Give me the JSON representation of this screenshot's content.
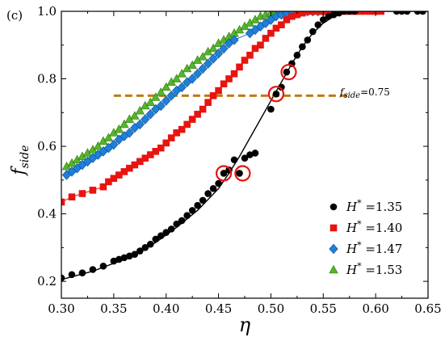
{
  "chart_data": {
    "type": "scatter",
    "panel_label": "(c)",
    "xlabel": "η",
    "ylabel": "f_side",
    "xlim": [
      0.3,
      0.65
    ],
    "ylim": [
      0.15,
      1.0
    ],
    "x_ticks": [
      "0.30",
      "0.35",
      "0.40",
      "0.45",
      "0.50",
      "0.55",
      "0.60",
      "0.65"
    ],
    "x_tick_values": [
      0.3,
      0.35,
      0.4,
      0.45,
      0.5,
      0.55,
      0.6,
      0.65
    ],
    "y_ticks": [
      "0.2",
      "0.4",
      "0.6",
      "0.8",
      "1.0"
    ],
    "y_tick_values": [
      0.2,
      0.4,
      0.6,
      0.8,
      1.0
    ],
    "grid": false,
    "legend_position": "bottom-right",
    "series": [
      {
        "name": "H* =1.35",
        "marker": "circle",
        "color": "#000000",
        "points": [
          [
            0.3,
            0.21
          ],
          [
            0.31,
            0.22
          ],
          [
            0.32,
            0.225
          ],
          [
            0.33,
            0.235
          ],
          [
            0.34,
            0.245
          ],
          [
            0.35,
            0.26
          ],
          [
            0.355,
            0.265
          ],
          [
            0.36,
            0.27
          ],
          [
            0.365,
            0.275
          ],
          [
            0.37,
            0.28
          ],
          [
            0.375,
            0.29
          ],
          [
            0.38,
            0.3
          ],
          [
            0.385,
            0.31
          ],
          [
            0.39,
            0.325
          ],
          [
            0.395,
            0.335
          ],
          [
            0.4,
            0.345
          ],
          [
            0.405,
            0.355
          ],
          [
            0.41,
            0.37
          ],
          [
            0.415,
            0.38
          ],
          [
            0.42,
            0.395
          ],
          [
            0.425,
            0.41
          ],
          [
            0.43,
            0.425
          ],
          [
            0.435,
            0.44
          ],
          [
            0.44,
            0.46
          ],
          [
            0.445,
            0.475
          ],
          [
            0.45,
            0.49
          ],
          [
            0.455,
            0.52
          ],
          [
            0.46,
            0.53
          ],
          [
            0.465,
            0.56
          ],
          [
            0.47,
            0.52
          ],
          [
            0.475,
            0.565
          ],
          [
            0.48,
            0.575
          ],
          [
            0.485,
            0.58
          ],
          [
            0.5,
            0.71
          ],
          [
            0.505,
            0.755
          ],
          [
            0.51,
            0.775
          ],
          [
            0.515,
            0.82
          ],
          [
            0.52,
            0.845
          ],
          [
            0.525,
            0.87
          ],
          [
            0.53,
            0.895
          ],
          [
            0.535,
            0.915
          ],
          [
            0.54,
            0.94
          ],
          [
            0.545,
            0.96
          ],
          [
            0.55,
            0.975
          ],
          [
            0.555,
            0.985
          ],
          [
            0.56,
            0.99
          ],
          [
            0.565,
            0.995
          ],
          [
            0.57,
            1.0
          ],
          [
            0.575,
            1.0
          ],
          [
            0.58,
            1.0
          ],
          [
            0.62,
            1.0
          ],
          [
            0.625,
            1.0
          ],
          [
            0.63,
            1.0
          ],
          [
            0.64,
            1.0
          ],
          [
            0.645,
            1.0
          ]
        ],
        "fit_line": [
          [
            0.3,
            0.205
          ],
          [
            0.33,
            0.23
          ],
          [
            0.36,
            0.265
          ],
          [
            0.39,
            0.315
          ],
          [
            0.41,
            0.36
          ],
          [
            0.43,
            0.41
          ],
          [
            0.45,
            0.475
          ],
          [
            0.46,
            0.52
          ],
          [
            0.47,
            0.57
          ],
          [
            0.48,
            0.625
          ],
          [
            0.49,
            0.68
          ],
          [
            0.5,
            0.735
          ],
          [
            0.51,
            0.79
          ],
          [
            0.52,
            0.845
          ],
          [
            0.53,
            0.895
          ],
          [
            0.54,
            0.935
          ],
          [
            0.55,
            0.965
          ],
          [
            0.56,
            0.985
          ],
          [
            0.57,
            0.995
          ],
          [
            0.58,
            1.0
          ],
          [
            0.65,
            1.0
          ]
        ]
      },
      {
        "name": "H* =1.40",
        "marker": "square",
        "color": "#e8140f",
        "points": [
          [
            0.3,
            0.435
          ],
          [
            0.31,
            0.45
          ],
          [
            0.32,
            0.46
          ],
          [
            0.33,
            0.47
          ],
          [
            0.34,
            0.48
          ],
          [
            0.345,
            0.495
          ],
          [
            0.35,
            0.505
          ],
          [
            0.355,
            0.515
          ],
          [
            0.36,
            0.525
          ],
          [
            0.365,
            0.535
          ],
          [
            0.37,
            0.545
          ],
          [
            0.375,
            0.555
          ],
          [
            0.38,
            0.565
          ],
          [
            0.385,
            0.575
          ],
          [
            0.39,
            0.585
          ],
          [
            0.395,
            0.595
          ],
          [
            0.4,
            0.61
          ],
          [
            0.405,
            0.625
          ],
          [
            0.41,
            0.64
          ],
          [
            0.415,
            0.65
          ],
          [
            0.42,
            0.665
          ],
          [
            0.425,
            0.68
          ],
          [
            0.43,
            0.695
          ],
          [
            0.435,
            0.71
          ],
          [
            0.44,
            0.73
          ],
          [
            0.445,
            0.75
          ],
          [
            0.45,
            0.765
          ],
          [
            0.455,
            0.785
          ],
          [
            0.46,
            0.8
          ],
          [
            0.465,
            0.815
          ],
          [
            0.47,
            0.835
          ],
          [
            0.475,
            0.855
          ],
          [
            0.48,
            0.87
          ],
          [
            0.485,
            0.89
          ],
          [
            0.49,
            0.9
          ],
          [
            0.495,
            0.92
          ],
          [
            0.5,
            0.935
          ],
          [
            0.505,
            0.95
          ],
          [
            0.51,
            0.96
          ],
          [
            0.515,
            0.975
          ],
          [
            0.52,
            0.985
          ],
          [
            0.525,
            0.99
          ],
          [
            0.53,
            0.995
          ],
          [
            0.535,
            1.0
          ],
          [
            0.54,
            1.0
          ],
          [
            0.545,
            1.0
          ],
          [
            0.55,
            1.0
          ],
          [
            0.555,
            1.0
          ],
          [
            0.56,
            1.0
          ],
          [
            0.565,
            1.0
          ],
          [
            0.57,
            1.0
          ],
          [
            0.575,
            1.0
          ],
          [
            0.58,
            1.0
          ],
          [
            0.585,
            1.0
          ],
          [
            0.59,
            1.0
          ],
          [
            0.595,
            1.0
          ],
          [
            0.6,
            1.0
          ],
          [
            0.605,
            1.0
          ]
        ]
      },
      {
        "name": "H* =1.47",
        "marker": "diamond",
        "color": "#1f7fd9",
        "points": [
          [
            0.305,
            0.515
          ],
          [
            0.31,
            0.525
          ],
          [
            0.315,
            0.535
          ],
          [
            0.32,
            0.545
          ],
          [
            0.325,
            0.555
          ],
          [
            0.33,
            0.565
          ],
          [
            0.335,
            0.575
          ],
          [
            0.34,
            0.585
          ],
          [
            0.345,
            0.595
          ],
          [
            0.35,
            0.605
          ],
          [
            0.355,
            0.62
          ],
          [
            0.36,
            0.63
          ],
          [
            0.365,
            0.64
          ],
          [
            0.37,
            0.655
          ],
          [
            0.375,
            0.665
          ],
          [
            0.38,
            0.68
          ],
          [
            0.385,
            0.695
          ],
          [
            0.39,
            0.71
          ],
          [
            0.395,
            0.72
          ],
          [
            0.4,
            0.735
          ],
          [
            0.405,
            0.75
          ],
          [
            0.41,
            0.765
          ],
          [
            0.415,
            0.775
          ],
          [
            0.42,
            0.79
          ],
          [
            0.425,
            0.8
          ],
          [
            0.43,
            0.815
          ],
          [
            0.435,
            0.83
          ],
          [
            0.44,
            0.845
          ],
          [
            0.445,
            0.86
          ],
          [
            0.45,
            0.875
          ],
          [
            0.455,
            0.89
          ],
          [
            0.46,
            0.905
          ],
          [
            0.465,
            0.915
          ],
          [
            0.48,
            0.935
          ],
          [
            0.485,
            0.945
          ],
          [
            0.49,
            0.955
          ],
          [
            0.495,
            0.965
          ],
          [
            0.5,
            0.975
          ],
          [
            0.505,
            0.985
          ],
          [
            0.51,
            0.99
          ],
          [
            0.515,
            0.995
          ],
          [
            0.52,
            1.0
          ],
          [
            0.525,
            1.0
          ],
          [
            0.53,
            1.0
          ],
          [
            0.535,
            1.0
          ],
          [
            0.54,
            1.0
          ],
          [
            0.545,
            1.0
          ],
          [
            0.55,
            1.0
          ],
          [
            0.555,
            1.0
          ]
        ]
      },
      {
        "name": "H* =1.53",
        "marker": "triangle",
        "color": "#55b52a",
        "points": [
          [
            0.305,
            0.54
          ],
          [
            0.31,
            0.55
          ],
          [
            0.315,
            0.56
          ],
          [
            0.32,
            0.57
          ],
          [
            0.325,
            0.58
          ],
          [
            0.33,
            0.59
          ],
          [
            0.335,
            0.6
          ],
          [
            0.34,
            0.615
          ],
          [
            0.345,
            0.625
          ],
          [
            0.35,
            0.64
          ],
          [
            0.355,
            0.65
          ],
          [
            0.36,
            0.665
          ],
          [
            0.365,
            0.68
          ],
          [
            0.37,
            0.69
          ],
          [
            0.375,
            0.705
          ],
          [
            0.38,
            0.72
          ],
          [
            0.385,
            0.73
          ],
          [
            0.39,
            0.745
          ],
          [
            0.395,
            0.76
          ],
          [
            0.4,
            0.775
          ],
          [
            0.405,
            0.79
          ],
          [
            0.41,
            0.8
          ],
          [
            0.415,
            0.815
          ],
          [
            0.42,
            0.83
          ],
          [
            0.425,
            0.84
          ],
          [
            0.43,
            0.855
          ],
          [
            0.435,
            0.865
          ],
          [
            0.44,
            0.88
          ],
          [
            0.445,
            0.89
          ],
          [
            0.45,
            0.905
          ],
          [
            0.455,
            0.915
          ],
          [
            0.46,
            0.925
          ],
          [
            0.465,
            0.935
          ],
          [
            0.47,
            0.945
          ],
          [
            0.475,
            0.955
          ],
          [
            0.48,
            0.965
          ],
          [
            0.485,
            0.975
          ],
          [
            0.49,
            0.985
          ],
          [
            0.495,
            0.99
          ],
          [
            0.5,
            0.995
          ],
          [
            0.505,
            1.0
          ],
          [
            0.51,
            1.0
          ],
          [
            0.515,
            1.0
          ],
          [
            0.52,
            1.0
          ],
          [
            0.525,
            1.0
          ],
          [
            0.53,
            1.0
          ],
          [
            0.535,
            1.0
          ],
          [
            0.54,
            1.0
          ],
          [
            0.545,
            1.0
          ],
          [
            0.55,
            1.0
          ]
        ]
      }
    ],
    "reference_line": {
      "y": 0.75,
      "x_range": [
        0.35,
        0.575
      ],
      "label": "f_side=0.75",
      "color": "#c07a0f"
    },
    "highlighted_points": [
      [
        0.455,
        0.52
      ],
      [
        0.473,
        0.52
      ],
      [
        0.505,
        0.755
      ],
      [
        0.517,
        0.82
      ]
    ],
    "highlight_color": "#e8140f"
  }
}
